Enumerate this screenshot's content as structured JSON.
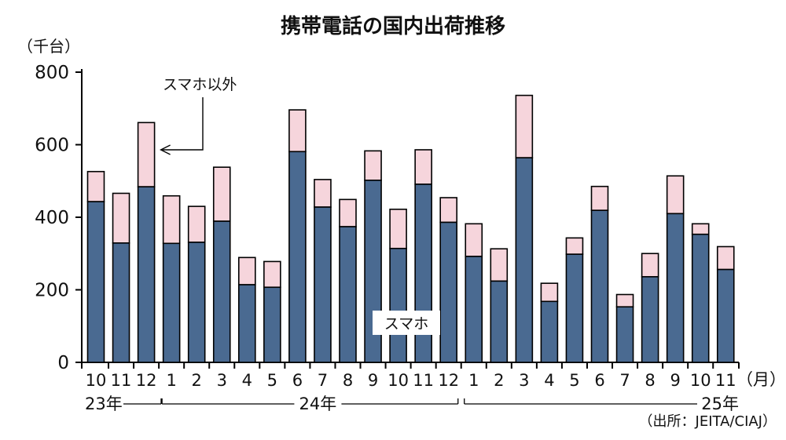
{
  "chart_data": {
    "type": "bar",
    "stacked": true,
    "title": "携帯電話の国内出荷推移",
    "y_unit": "（千台）",
    "x_unit": "（月）",
    "ylim": [
      0,
      800
    ],
    "yticks": [
      0,
      200,
      400,
      600,
      800
    ],
    "categories": [
      "10",
      "11",
      "12",
      "1",
      "2",
      "3",
      "4",
      "5",
      "6",
      "7",
      "8",
      "9",
      "10",
      "11",
      "12",
      "1",
      "2",
      "3",
      "4",
      "5",
      "6",
      "7",
      "8",
      "9",
      "10",
      "11"
    ],
    "year_groups": [
      {
        "label": "23年",
        "start": 0,
        "end": 2
      },
      {
        "label": "24年",
        "start": 3,
        "end": 14
      },
      {
        "label": "25年",
        "start": 15,
        "end": 25
      }
    ],
    "series": [
      {
        "name": "スマホ",
        "color": "#4a6a91",
        "values": [
          443,
          329,
          484,
          328,
          331,
          389,
          214,
          207,
          581,
          428,
          374,
          502,
          314,
          491,
          386,
          292,
          224,
          564,
          168,
          298,
          419,
          153,
          236,
          410,
          353,
          256
        ]
      },
      {
        "name": "スマホ以外",
        "color": "#f6d5dc",
        "values": [
          83,
          137,
          177,
          131,
          99,
          149,
          75,
          71,
          115,
          76,
          75,
          81,
          108,
          95,
          68,
          90,
          89,
          172,
          50,
          45,
          66,
          34,
          64,
          104,
          29,
          63
        ]
      }
    ],
    "annotations": {
      "non_smartphone_label": "スマホ以外",
      "smartphone_label": "スマホ"
    },
    "source": "（出所：JEITA/CIAJ）"
  }
}
